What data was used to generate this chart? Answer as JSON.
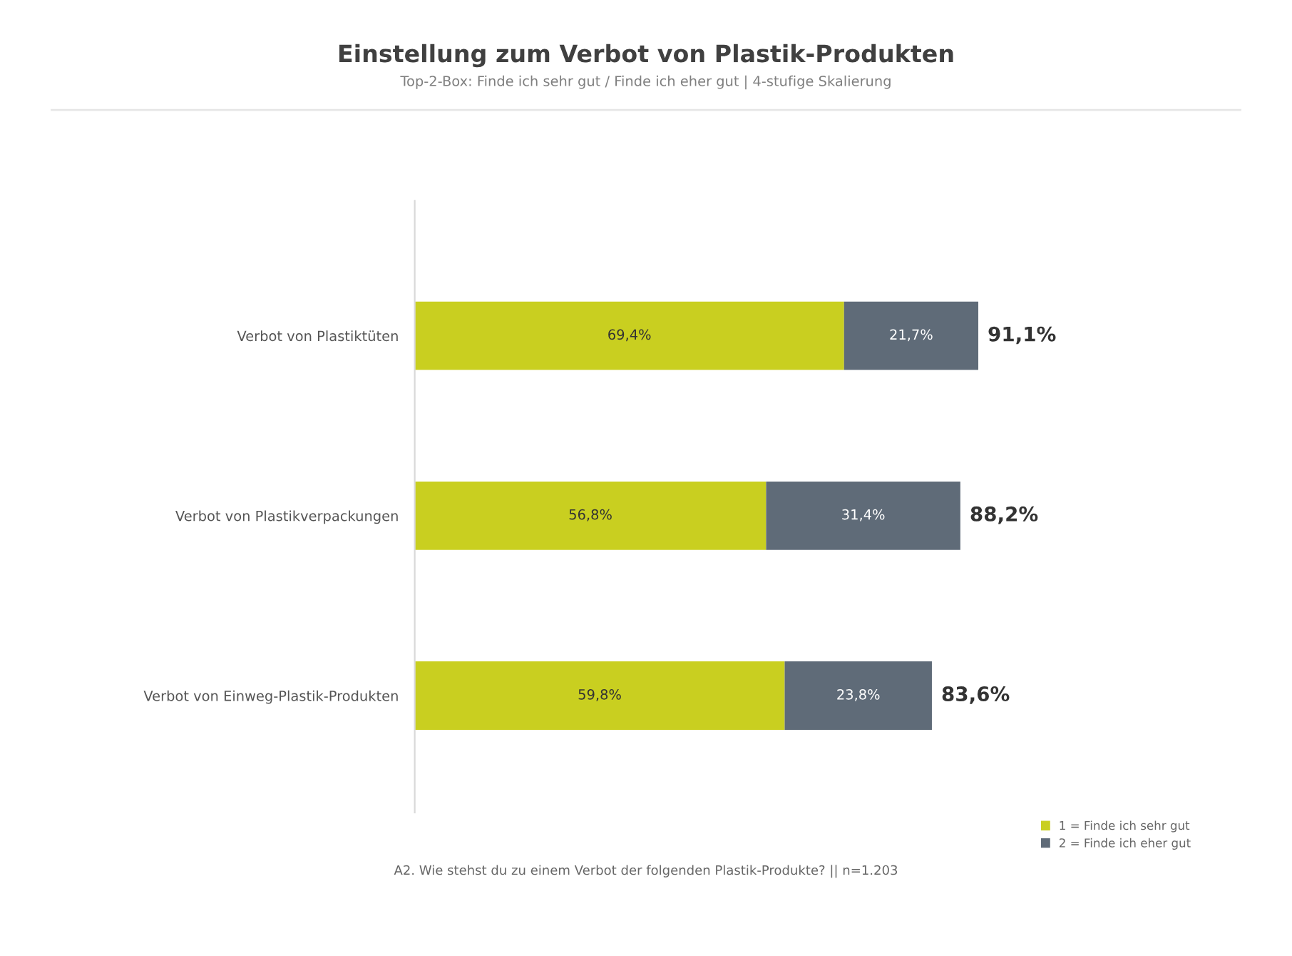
{
  "chart_data": {
    "type": "bar",
    "orientation": "horizontal",
    "stacked": true,
    "title": "Einstellung zum Verbot von Plastik-Produkten",
    "subtitle": "Top-2-Box: Finde ich sehr gut / Finde ich eher gut | 4-stufige Skalierung",
    "categories": [
      "Verbot von Plastiktüten",
      "Verbot von Plastikverpackungen",
      "Verbot von Einweg-Plastik-Produkten"
    ],
    "series": [
      {
        "name": "1 = Finde ich sehr gut",
        "color": "#c9cf20",
        "values": [
          69.4,
          56.8,
          59.8
        ],
        "value_labels": [
          "69,4%",
          "56,8%",
          "59,8%"
        ]
      },
      {
        "name": "2 = Finde ich eher gut",
        "color": "#5f6b78",
        "values": [
          21.7,
          31.4,
          23.8
        ],
        "value_labels": [
          "21,7%",
          "31,4%",
          "23,8%"
        ]
      }
    ],
    "totals": [
      "91,1%",
      "88,2%",
      "83,6%"
    ],
    "tick_labels": "y",
    "grid": false,
    "legend": "bottom right",
    "annotations": [
      "A2. Wie stehst du zu einem Verbot der folgenden Plastik-Produkte? || n=1.203"
    ]
  }
}
